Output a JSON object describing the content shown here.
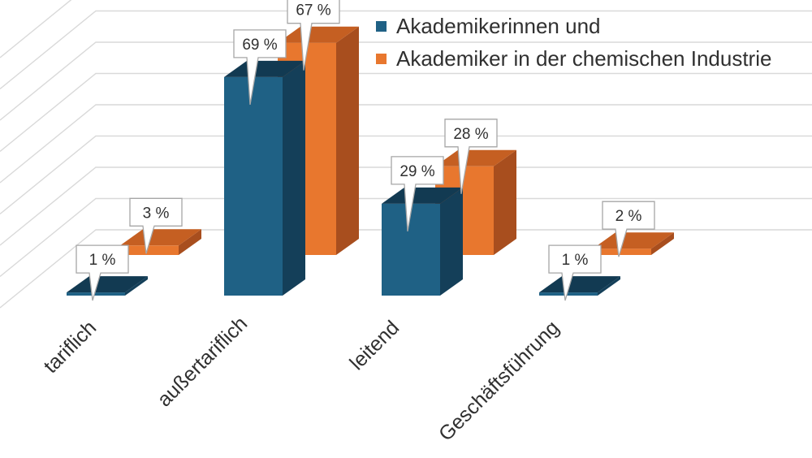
{
  "chart_data": {
    "type": "bar",
    "title": "",
    "xlabel": "",
    "ylabel": "",
    "ylim": [
      0,
      80
    ],
    "categories": [
      "tariflich",
      "außertariflich",
      "leitend",
      "Geschäftsführung"
    ],
    "series": [
      {
        "name": "Akademikerinnen und",
        "values": [
          1,
          69,
          29,
          1
        ],
        "labels": [
          "1 %",
          "69 %",
          "29 %",
          "1 %"
        ],
        "color": "#1f6185"
      },
      {
        "name": "Akademiker in der chemischen Industrie",
        "values": [
          3,
          67,
          28,
          2
        ],
        "labels": [
          "3 %",
          "67 %",
          "28 %",
          "2 %"
        ],
        "color": "#e8772e"
      }
    ],
    "grid": true,
    "legend_position": "top-right",
    "style": "3d-column"
  },
  "colors": {
    "blue_front": "#1f6185",
    "blue_side": "#143f59",
    "blue_top": "#123a52",
    "orange_front": "#e8772e",
    "orange_side": "#a84e1e",
    "orange_top": "#c55f22",
    "grid": "#d9d9d9",
    "label_border": "#a6a6a6",
    "text": "#303030"
  }
}
